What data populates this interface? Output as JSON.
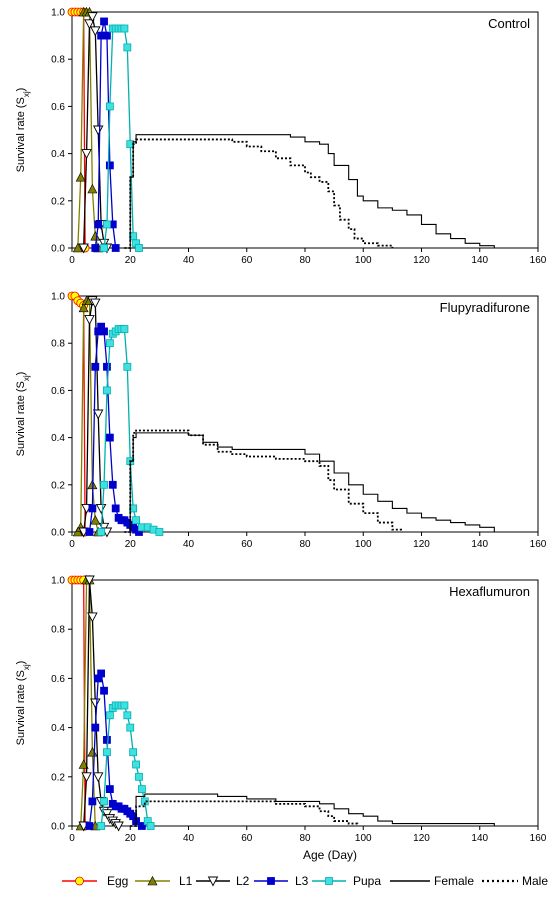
{
  "chart_data": [
    {
      "type": "line",
      "title": "Control",
      "ylabel": "Survival rate (S",
      "ylabel_sub": "xj",
      "ylabel_end": ")",
      "xlim": [
        0,
        160
      ],
      "ylim": [
        0,
        1.0
      ],
      "xticks": [
        0,
        20,
        40,
        60,
        80,
        100,
        120,
        140,
        160
      ],
      "yticks": [
        "0.0",
        "0.2",
        "0.4",
        "0.6",
        "0.8",
        "1.0"
      ],
      "series": [
        {
          "name": "Egg",
          "x": [
            0,
            1,
            2,
            3,
            4,
            4.5
          ],
          "y": [
            1,
            1,
            1,
            1,
            1,
            0
          ]
        },
        {
          "name": "L1",
          "x": [
            2,
            3,
            4,
            5,
            6,
            7,
            8,
            9
          ],
          "y": [
            0,
            0.3,
            1,
            1,
            1,
            0.25,
            0.05,
            0
          ]
        },
        {
          "name": "L2",
          "x": [
            4,
            5,
            6,
            7,
            8,
            9,
            10,
            11,
            12
          ],
          "y": [
            0,
            0.4,
            0.95,
            0.98,
            0.92,
            0.5,
            0.1,
            0.02,
            0
          ]
        },
        {
          "name": "L3",
          "x": [
            8,
            9,
            10,
            11,
            12,
            13,
            14,
            15
          ],
          "y": [
            0,
            0.1,
            0.9,
            0.96,
            0.9,
            0.35,
            0.1,
            0
          ]
        },
        {
          "name": "Pupa",
          "x": [
            11,
            12,
            13,
            14,
            15,
            16,
            17,
            18,
            19,
            20,
            21,
            22,
            23
          ],
          "y": [
            0,
            0.1,
            0.6,
            0.93,
            0.93,
            0.93,
            0.93,
            0.93,
            0.85,
            0.44,
            0.05,
            0.02,
            0
          ]
        },
        {
          "name": "Female",
          "x": [
            18,
            20,
            21,
            22,
            30,
            40,
            50,
            60,
            70,
            75,
            80,
            85,
            88,
            90,
            95,
            98,
            100,
            105,
            110,
            115,
            120,
            125,
            130,
            135,
            140,
            145
          ],
          "y": [
            0,
            0.3,
            0.45,
            0.48,
            0.48,
            0.48,
            0.48,
            0.48,
            0.48,
            0.47,
            0.45,
            0.44,
            0.4,
            0.35,
            0.29,
            0.22,
            0.2,
            0.17,
            0.16,
            0.14,
            0.1,
            0.06,
            0.04,
            0.02,
            0.01,
            0
          ]
        },
        {
          "name": "Male",
          "x": [
            18,
            20,
            21,
            22,
            30,
            40,
            50,
            55,
            60,
            65,
            70,
            75,
            80,
            82,
            85,
            88,
            90,
            92,
            95,
            97,
            100,
            105,
            110
          ],
          "y": [
            0,
            0.3,
            0.44,
            0.46,
            0.46,
            0.46,
            0.46,
            0.45,
            0.43,
            0.41,
            0.38,
            0.35,
            0.32,
            0.3,
            0.28,
            0.24,
            0.18,
            0.12,
            0.08,
            0.04,
            0.02,
            0.01,
            0
          ]
        }
      ]
    },
    {
      "type": "line",
      "title": "Flupyradifurone",
      "ylabel": "Survival rate (S",
      "ylabel_sub": "xj",
      "ylabel_end": ")",
      "xlim": [
        0,
        160
      ],
      "ylim": [
        0,
        1.0
      ],
      "xticks": [
        0,
        20,
        40,
        60,
        80,
        100,
        120,
        140,
        160
      ],
      "yticks": [
        "0.0",
        "0.2",
        "0.4",
        "0.6",
        "0.8",
        "1.0"
      ],
      "series": [
        {
          "name": "Egg",
          "x": [
            0,
            1,
            2,
            3,
            4,
            4.5
          ],
          "y": [
            1,
            1,
            0.98,
            0.97,
            0.96,
            0
          ]
        },
        {
          "name": "L1",
          "x": [
            2,
            3,
            4,
            5,
            6,
            7,
            8,
            9
          ],
          "y": [
            0,
            0.02,
            0.95,
            0.98,
            0.98,
            0.2,
            0.05,
            0
          ]
        },
        {
          "name": "L2",
          "x": [
            4,
            5,
            6,
            7,
            8,
            9,
            10,
            11,
            12
          ],
          "y": [
            0,
            0.1,
            0.9,
            0.98,
            0.97,
            0.5,
            0.1,
            0.02,
            0
          ]
        },
        {
          "name": "L3",
          "x": [
            6,
            7,
            8,
            9,
            10,
            11,
            12,
            13,
            14,
            15,
            16,
            17,
            18,
            19,
            20,
            21,
            22,
            23
          ],
          "y": [
            0,
            0.1,
            0.7,
            0.85,
            0.87,
            0.85,
            0.7,
            0.4,
            0.2,
            0.1,
            0.06,
            0.05,
            0.05,
            0.04,
            0.03,
            0.02,
            0.01,
            0
          ]
        },
        {
          "name": "Pupa",
          "x": [
            10,
            11,
            12,
            13,
            14,
            15,
            16,
            17,
            18,
            19,
            20,
            21,
            22,
            24,
            26,
            28,
            30
          ],
          "y": [
            0,
            0.2,
            0.6,
            0.8,
            0.84,
            0.85,
            0.86,
            0.86,
            0.86,
            0.7,
            0.3,
            0.1,
            0.05,
            0.02,
            0.02,
            0.01,
            0
          ]
        },
        {
          "name": "Female",
          "x": [
            18,
            20,
            21,
            22,
            30,
            40,
            45,
            50,
            55,
            60,
            70,
            80,
            85,
            90,
            95,
            100,
            105,
            110,
            115,
            120,
            125,
            130,
            135,
            140,
            145
          ],
          "y": [
            0,
            0.3,
            0.4,
            0.42,
            0.42,
            0.41,
            0.38,
            0.36,
            0.35,
            0.35,
            0.35,
            0.33,
            0.3,
            0.25,
            0.2,
            0.16,
            0.13,
            0.1,
            0.08,
            0.06,
            0.05,
            0.04,
            0.03,
            0.02,
            0
          ]
        },
        {
          "name": "Male",
          "x": [
            18,
            20,
            21,
            22,
            30,
            40,
            45,
            50,
            55,
            60,
            70,
            80,
            85,
            88,
            90,
            95,
            100,
            105,
            110,
            113
          ],
          "y": [
            0,
            0.3,
            0.42,
            0.43,
            0.43,
            0.41,
            0.37,
            0.34,
            0.33,
            0.32,
            0.31,
            0.3,
            0.28,
            0.22,
            0.18,
            0.12,
            0.08,
            0.04,
            0.01,
            0
          ]
        }
      ]
    },
    {
      "type": "line",
      "title": "Hexaflumuron",
      "ylabel": "Survival rate (S",
      "ylabel_sub": "xj",
      "ylabel_end": ")",
      "xlabel": "Age (Day)",
      "xlim": [
        0,
        160
      ],
      "ylim": [
        0,
        1.0
      ],
      "xticks": [
        0,
        20,
        40,
        60,
        80,
        100,
        120,
        140,
        160
      ],
      "yticks": [
        "0.0",
        "0.2",
        "0.4",
        "0.6",
        "0.8",
        "1.0"
      ],
      "series": [
        {
          "name": "Egg",
          "x": [
            0,
            1,
            2,
            3,
            4,
            4.5
          ],
          "y": [
            1,
            1,
            1,
            1,
            1,
            0
          ]
        },
        {
          "name": "L1",
          "x": [
            3,
            4,
            5,
            6,
            7,
            8
          ],
          "y": [
            0,
            0.25,
            1,
            1,
            0.3,
            0
          ]
        },
        {
          "name": "L2",
          "x": [
            4,
            5,
            6,
            7,
            8,
            9,
            10,
            11,
            12,
            13,
            14,
            15,
            16
          ],
          "y": [
            0,
            0.2,
            1,
            0.85,
            0.5,
            0.2,
            0.1,
            0.06,
            0.05,
            0.03,
            0.02,
            0.01,
            0
          ]
        },
        {
          "name": "L3",
          "x": [
            6,
            7,
            8,
            9,
            10,
            11,
            12,
            13,
            14,
            15,
            16,
            17,
            18,
            19,
            20,
            21,
            22,
            24
          ],
          "y": [
            0,
            0.1,
            0.4,
            0.6,
            0.62,
            0.55,
            0.35,
            0.15,
            0.09,
            0.08,
            0.08,
            0.07,
            0.07,
            0.06,
            0.05,
            0.04,
            0.02,
            0
          ]
        },
        {
          "name": "Pupa",
          "x": [
            10,
            11,
            12,
            13,
            14,
            15,
            16,
            17,
            18,
            19,
            20,
            21,
            22,
            23,
            24,
            25,
            26,
            27
          ],
          "y": [
            0,
            0.1,
            0.3,
            0.45,
            0.48,
            0.49,
            0.49,
            0.49,
            0.49,
            0.45,
            0.4,
            0.3,
            0.25,
            0.2,
            0.15,
            0.1,
            0.02,
            0
          ]
        },
        {
          "name": "Female",
          "x": [
            20,
            22,
            25,
            30,
            40,
            50,
            60,
            70,
            80,
            85,
            90,
            95,
            100,
            105,
            110,
            120,
            130,
            140,
            145
          ],
          "y": [
            0,
            0.12,
            0.13,
            0.13,
            0.13,
            0.12,
            0.11,
            0.1,
            0.1,
            0.09,
            0.07,
            0.05,
            0.04,
            0.02,
            0.01,
            0.01,
            0.01,
            0.01,
            0
          ]
        },
        {
          "name": "Male",
          "x": [
            20,
            22,
            25,
            30,
            40,
            50,
            60,
            70,
            80,
            85,
            88,
            90,
            95,
            98
          ],
          "y": [
            0,
            0.08,
            0.1,
            0.1,
            0.1,
            0.1,
            0.1,
            0.09,
            0.08,
            0.06,
            0.04,
            0.02,
            0.01,
            0
          ]
        }
      ]
    }
  ],
  "legend": {
    "placement": "bottom",
    "items": [
      {
        "label": "Egg",
        "color": "#ff0000",
        "marker": "circle",
        "fill": "#ffff00"
      },
      {
        "label": "L1",
        "color": "#808000",
        "marker": "triangle-up",
        "fill": "#808000"
      },
      {
        "label": "L2",
        "color": "#000000",
        "marker": "triangle-down",
        "fill": "#ffffff"
      },
      {
        "label": "L3",
        "color": "#0000cc",
        "marker": "square",
        "fill": "#0000cc"
      },
      {
        "label": "Pupa",
        "color": "#00b0b0",
        "marker": "square",
        "fill": "#40e0e0"
      },
      {
        "label": "Female",
        "color": "#000000",
        "marker": "none",
        "dash": "solid"
      },
      {
        "label": "Male",
        "color": "#000000",
        "marker": "none",
        "dash": "dotted"
      }
    ]
  }
}
